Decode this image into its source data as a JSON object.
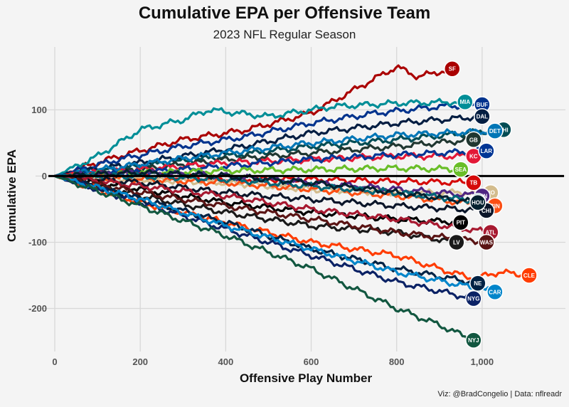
{
  "chart_data": {
    "type": "line",
    "title": "Cumulative EPA per Offensive Team",
    "subtitle": "2023 NFL Regular Season",
    "xlabel": "Offensive Play Number",
    "ylabel": "Cumulative EPA",
    "caption": "Viz: @BradCongelio | Data: nflreadr",
    "xlim": [
      -45,
      1195
    ],
    "ylim": [
      -265,
      195
    ],
    "x_ticks": [
      0,
      200,
      400,
      600,
      800,
      1000
    ],
    "x_tick_labels": [
      "0",
      "200",
      "400",
      "600",
      "800",
      "1,000"
    ],
    "y_ticks": [
      -200,
      -100,
      0,
      100
    ],
    "y_tick_labels": [
      "-200",
      "-100",
      "0",
      "100"
    ],
    "zero_line": 0,
    "grid": true,
    "legend": "none (team logos at line ends)",
    "series": [
      {
        "name": "SF",
        "color": "#aa0000",
        "x": [
          0,
          150,
          300,
          450,
          600,
          700,
          800,
          850,
          930
        ],
        "y": [
          0,
          30,
          55,
          70,
          95,
          130,
          165,
          150,
          162
        ]
      },
      {
        "name": "BUF",
        "color": "#00338d",
        "x": [
          0,
          150,
          300,
          450,
          600,
          750,
          900,
          1000
        ],
        "y": [
          0,
          25,
          45,
          60,
          80,
          95,
          105,
          108
        ]
      },
      {
        "name": "MIA",
        "color": "#008e97",
        "x": [
          0,
          100,
          200,
          300,
          360,
          500,
          650,
          800,
          960
        ],
        "y": [
          0,
          30,
          70,
          85,
          100,
          90,
          105,
          110,
          112
        ]
      },
      {
        "name": "DAL",
        "color": "#041e42",
        "x": [
          0,
          200,
          400,
          600,
          800,
          1000
        ],
        "y": [
          0,
          20,
          40,
          65,
          80,
          90
        ]
      },
      {
        "name": "PHI",
        "color": "#004c54",
        "x": [
          0,
          200,
          400,
          600,
          800,
          1050
        ],
        "y": [
          0,
          15,
          30,
          45,
          55,
          70
        ]
      },
      {
        "name": "GB",
        "color": "#203731",
        "x": [
          0,
          200,
          400,
          600,
          800,
          980
        ],
        "y": [
          0,
          10,
          25,
          35,
          45,
          55
        ]
      },
      {
        "name": "KC",
        "color": "#e31837",
        "x": [
          0,
          200,
          400,
          600,
          800,
          980
        ],
        "y": [
          0,
          10,
          20,
          25,
          30,
          30
        ]
      },
      {
        "name": "LAR",
        "color": "#003594",
        "x": [
          0,
          200,
          400,
          600,
          800,
          1010
        ],
        "y": [
          0,
          5,
          15,
          25,
          32,
          38
        ]
      },
      {
        "name": "DET",
        "color": "#0076b6",
        "x": [
          0,
          200,
          400,
          600,
          800,
          1030
        ],
        "y": [
          0,
          18,
          35,
          50,
          62,
          68
        ]
      },
      {
        "name": "SEA",
        "color": "#69be28",
        "x": [
          0,
          200,
          400,
          600,
          800,
          950
        ],
        "y": [
          0,
          5,
          8,
          10,
          12,
          10
        ]
      },
      {
        "name": "TB",
        "color": "#d50a0a",
        "x": [
          0,
          200,
          400,
          600,
          800,
          980
        ],
        "y": [
          0,
          0,
          -5,
          -5,
          -8,
          -10
        ]
      },
      {
        "name": "NO",
        "color": "#d3bc8d",
        "x": [
          0,
          200,
          400,
          600,
          800,
          1020
        ],
        "y": [
          0,
          -5,
          -10,
          -20,
          -25,
          -25
        ]
      },
      {
        "name": "MIN",
        "color": "#4f2683",
        "x": [
          0,
          200,
          400,
          600,
          800,
          1000
        ],
        "y": [
          0,
          5,
          0,
          -10,
          -20,
          -30
        ]
      },
      {
        "name": "CIN",
        "color": "#fb4f14",
        "x": [
          0,
          200,
          400,
          600,
          800,
          1030
        ],
        "y": [
          0,
          -5,
          -10,
          -20,
          -30,
          -45
        ]
      },
      {
        "name": "JAX",
        "color": "#006778",
        "x": [
          0,
          200,
          400,
          600,
          800,
          990
        ],
        "y": [
          0,
          0,
          -5,
          -15,
          -25,
          -38
        ]
      },
      {
        "name": "CHI",
        "color": "#0b162a",
        "x": [
          0,
          200,
          400,
          600,
          800,
          1010
        ],
        "y": [
          0,
          -10,
          -25,
          -35,
          -45,
          -52
        ]
      },
      {
        "name": "HOU",
        "color": "#03202f",
        "x": [
          0,
          200,
          400,
          600,
          800,
          990
        ],
        "y": [
          0,
          5,
          0,
          -10,
          -25,
          -40
        ]
      },
      {
        "name": "PIT",
        "color": "#000000",
        "x": [
          0,
          200,
          400,
          600,
          800,
          950
        ],
        "y": [
          0,
          -20,
          -40,
          -55,
          -65,
          -70
        ]
      },
      {
        "name": "ATL",
        "color": "#a71930",
        "x": [
          0,
          200,
          400,
          600,
          800,
          1020
        ],
        "y": [
          0,
          -15,
          -30,
          -50,
          -65,
          -85
        ]
      },
      {
        "name": "LV",
        "color": "#1a1a1a",
        "x": [
          0,
          200,
          400,
          600,
          800,
          940
        ],
        "y": [
          0,
          -30,
          -55,
          -75,
          -85,
          -100
        ]
      },
      {
        "name": "WAS",
        "color": "#5a1414",
        "x": [
          0,
          200,
          400,
          600,
          800,
          1010
        ],
        "y": [
          0,
          -25,
          -45,
          -65,
          -85,
          -100
        ]
      },
      {
        "name": "CLE",
        "color": "#ff3c00",
        "x": [
          0,
          200,
          400,
          600,
          800,
          900,
          980,
          1040,
          1110
        ],
        "y": [
          0,
          -40,
          -70,
          -100,
          -120,
          -140,
          -155,
          -145,
          -150
        ]
      },
      {
        "name": "NE",
        "color": "#002244",
        "x": [
          0,
          200,
          400,
          600,
          800,
          990
        ],
        "y": [
          0,
          -35,
          -70,
          -110,
          -140,
          -162
        ]
      },
      {
        "name": "NYG",
        "color": "#0b2265",
        "x": [
          0,
          200,
          400,
          600,
          800,
          980
        ],
        "y": [
          0,
          -40,
          -80,
          -120,
          -160,
          -185
        ]
      },
      {
        "name": "CAR",
        "color": "#0085ca",
        "x": [
          0,
          200,
          400,
          600,
          800,
          1030
        ],
        "y": [
          0,
          -35,
          -75,
          -110,
          -145,
          -175
        ]
      },
      {
        "name": "NYJ",
        "color": "#125740",
        "x": [
          0,
          200,
          400,
          600,
          700,
          800,
          900,
          980
        ],
        "y": [
          0,
          -45,
          -90,
          -140,
          -170,
          -200,
          -225,
          -248
        ]
      }
    ]
  }
}
